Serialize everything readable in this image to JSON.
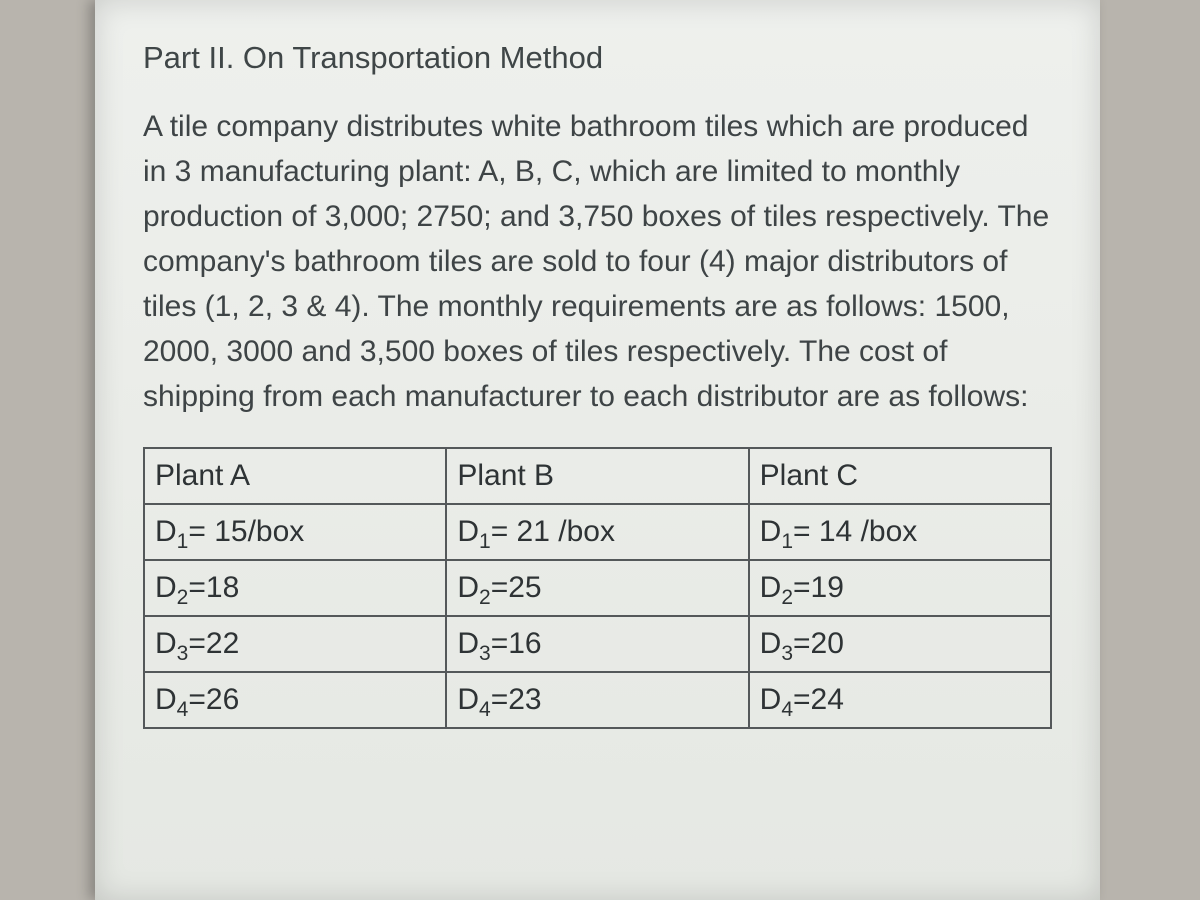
{
  "heading": "Part II. On Transportation Method",
  "paragraph": "A tile company distributes white bathroom tiles which are produced in 3 manufacturing plant: A, B, C, which are limited to monthly production of 3,000; 2750; and 3,750 boxes of tiles respectively. The company's bathroom tiles are sold to four (4) major  distributors of tiles  (1, 2, 3 & 4). The monthly requirements are as follows: 1500, 2000, 3000 and 3,500 boxes of tiles respectively.  The cost of shipping from each manufacturer to each distributor are as follows:",
  "table": {
    "header": [
      "Plant A",
      "Plant B",
      "Plant C"
    ],
    "rows": [
      {
        "sub": "1",
        "a": "= 15/box",
        "b": "= 21 /box",
        "c": "= 14 /box"
      },
      {
        "sub": "2",
        "a": "=18",
        "b": "=25",
        "c": "=19"
      },
      {
        "sub": "3",
        "a": "=22",
        "b": "=16",
        "c": "=20"
      },
      {
        "sub": "4",
        "a": "=26",
        "b": "=23",
        "c": "=24"
      }
    ],
    "row_label_prefix": "D",
    "border_color": "#54585a",
    "text_color": "#2e3335",
    "fontsize": 30
  },
  "colors": {
    "page_bg": "#ebede9",
    "outer_bg": "#b8b4ad",
    "heading_color": "#3f4647",
    "body_color": "#3e4446"
  },
  "typography": {
    "heading_fontsize": 31,
    "body_fontsize": 30,
    "line_height": 1.5,
    "font_family": "Segoe UI / Helvetica Neue / Arial"
  }
}
